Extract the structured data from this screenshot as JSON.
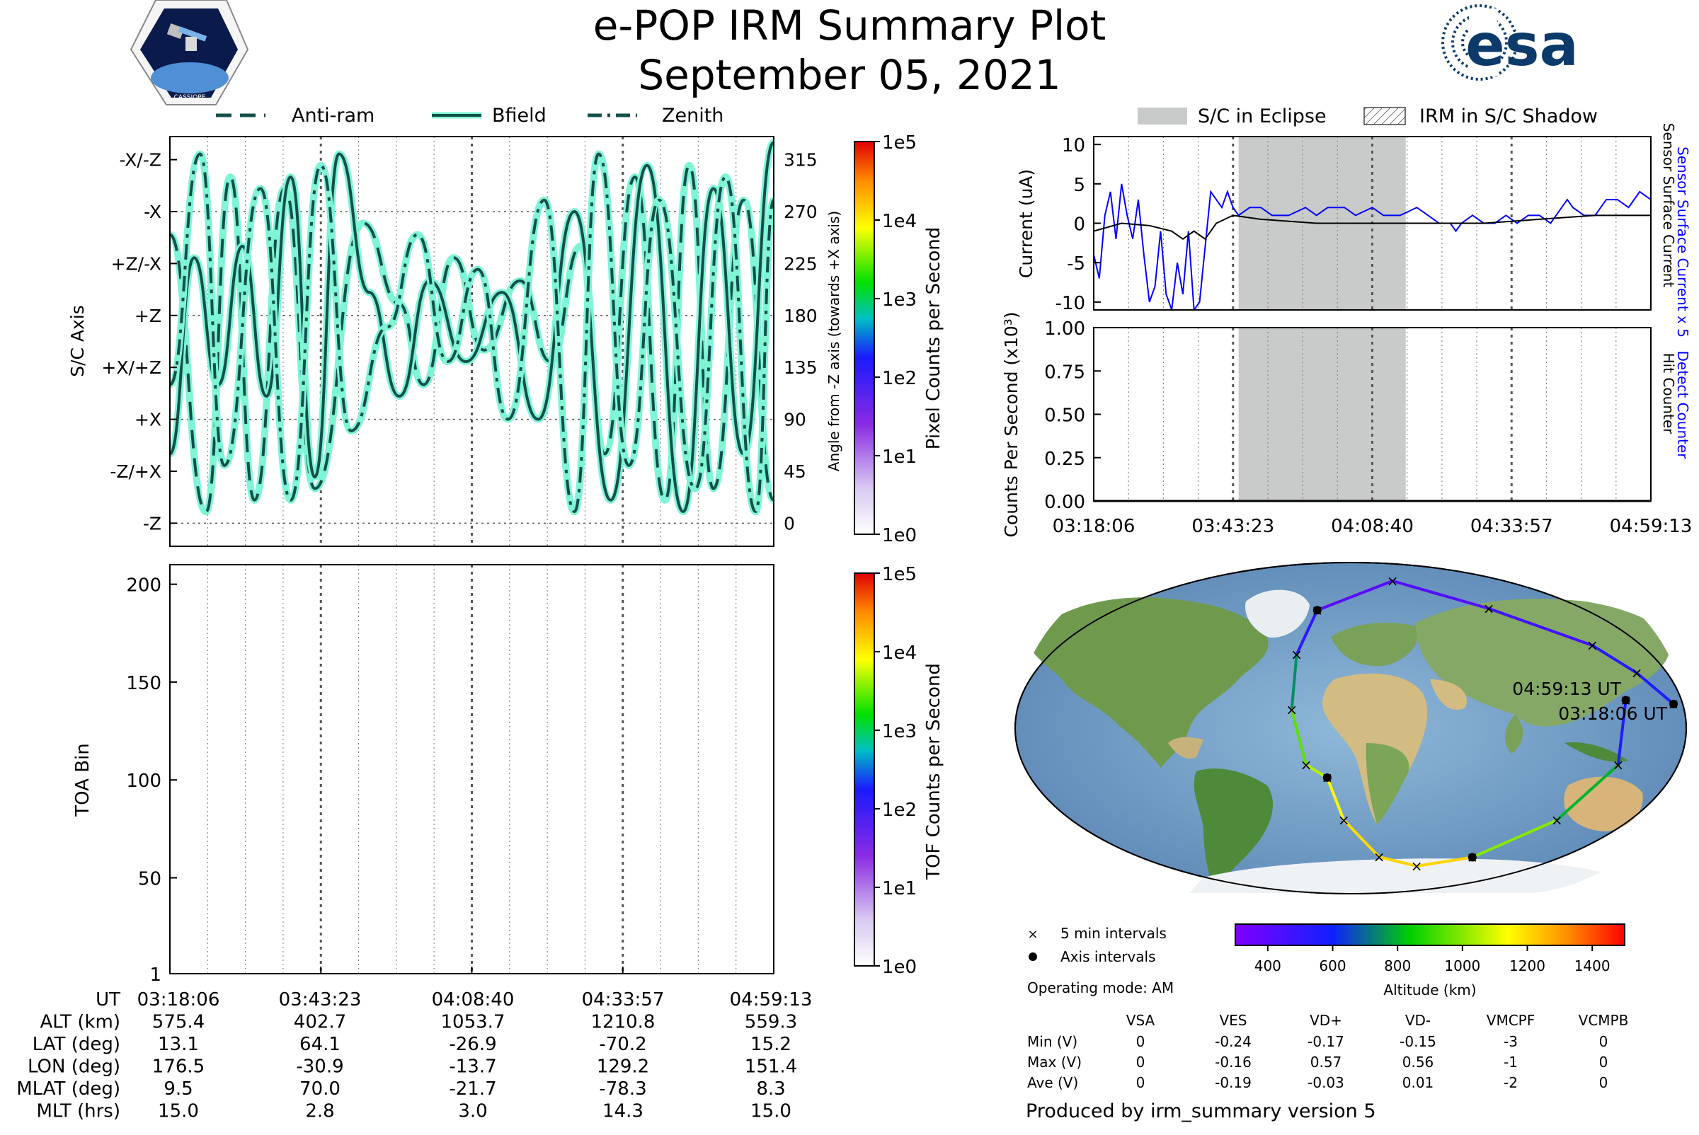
{
  "header": {
    "title": "e-POP IRM Summary Plot",
    "date": "September 05, 2021",
    "mission_logo_text": "CASSIOPE",
    "agency_logo_text": "esa"
  },
  "colors": {
    "direction_line": "#14504a",
    "direction_halo": "#7ff5d6",
    "eclipse": "#c9cbca",
    "sensor_current": "#0000ff",
    "counter_line": "#0000cc"
  },
  "time_labels": [
    "03:18:06",
    "03:43:23",
    "04:08:40",
    "04:33:57",
    "04:59:13"
  ],
  "chart_data": [
    {
      "id": "direction_panel",
      "type": "line",
      "legend": [
        "Anti-ram",
        "Bfield",
        "Zenith"
      ],
      "ylabel": "S/C Axis",
      "y2label": "Angle from -Z axis (towards +X axis)",
      "ylim": [
        -20,
        335
      ],
      "axis_ticks": [
        {
          "label": "-X/-Z",
          "value": 315
        },
        {
          "label": "-X",
          "value": 270
        },
        {
          "label": "+Z/-X",
          "value": 225
        },
        {
          "label": "+Z",
          "value": 180
        },
        {
          "label": "+X/+Z",
          "value": 135
        },
        {
          "label": "+X",
          "value": 90
        },
        {
          "label": "-Z/+X",
          "value": 45
        },
        {
          "label": "-Z",
          "value": 0
        }
      ],
      "angle_ticks": [
        "315",
        "270",
        "225",
        "180",
        "135",
        "90",
        "45",
        "0"
      ],
      "colorbar": {
        "label": "Pixel Counts per Second",
        "ticks": [
          "1e5",
          "1e4",
          "1e3",
          "1e2",
          "1e1",
          "1e0"
        ]
      },
      "series": [
        {
          "name": "Anti-ram",
          "style": "dashed",
          "x": [
            0,
            0.06,
            0.1,
            0.14,
            0.19,
            0.24,
            0.32,
            0.38,
            0.42,
            0.47,
            0.52,
            0.58,
            0.63,
            0.68,
            0.72,
            0.77,
            0.82,
            0.86,
            0.9,
            0.95,
            1.0
          ],
          "values": [
            250,
            10,
            300,
            20,
            290,
            30,
            260,
            190,
            120,
            230,
            150,
            210,
            140,
            240,
            60,
            300,
            20,
            310,
            30,
            280,
            20
          ]
        },
        {
          "name": "Bfield",
          "style": "solid",
          "x": [
            0,
            0.04,
            0.08,
            0.12,
            0.16,
            0.2,
            0.24,
            0.28,
            0.33,
            0.38,
            0.43,
            0.49,
            0.55,
            0.61,
            0.67,
            0.73,
            0.79,
            0.85,
            0.9,
            0.95,
            1.0
          ],
          "values": [
            60,
            230,
            120,
            240,
            110,
            300,
            40,
            320,
            200,
            110,
            210,
            140,
            200,
            90,
            270,
            20,
            310,
            10,
            290,
            60,
            330
          ]
        },
        {
          "name": "Zenith",
          "style": "dashdot",
          "x": [
            0,
            0.05,
            0.09,
            0.15,
            0.2,
            0.25,
            0.3,
            0.36,
            0.41,
            0.46,
            0.51,
            0.56,
            0.62,
            0.67,
            0.71,
            0.76,
            0.81,
            0.87,
            0.92,
            0.97,
            1.0
          ],
          "values": [
            120,
            320,
            50,
            290,
            20,
            310,
            80,
            170,
            250,
            140,
            220,
            90,
            280,
            10,
            320,
            50,
            280,
            30,
            300,
            10,
            280
          ]
        }
      ]
    },
    {
      "id": "tof_panel",
      "type": "heatmap",
      "ylabel": "TOA Bin",
      "yticks": [
        200,
        150,
        100,
        50,
        1
      ],
      "ylim": [
        1,
        210
      ],
      "colorbar": {
        "label": "TOF Counts per Second",
        "ticks": [
          "1e5",
          "1e4",
          "1e3",
          "1e2",
          "1e1",
          "1e0"
        ]
      },
      "values": []
    },
    {
      "id": "current_panel",
      "type": "line",
      "legend": [
        "S/C in Eclipse",
        "IRM in S/C Shadow"
      ],
      "ylabel": "Current (uA)",
      "right_labels": [
        "Sensor Surface Current x 5",
        "Sensor Surface Current"
      ],
      "yticks": [
        10,
        5,
        0,
        -5,
        -10
      ],
      "ylim": [
        -11,
        11
      ],
      "eclipse": [
        0.26,
        0.56
      ],
      "series": [
        {
          "name": "Sensor Surface Current x 5",
          "x": [
            0,
            0.01,
            0.02,
            0.03,
            0.04,
            0.05,
            0.06,
            0.07,
            0.08,
            0.09,
            0.1,
            0.11,
            0.12,
            0.13,
            0.14,
            0.15,
            0.16,
            0.17,
            0.18,
            0.19,
            0.2,
            0.21,
            0.22,
            0.23,
            0.24,
            0.25,
            0.26,
            0.28,
            0.3,
            0.32,
            0.35,
            0.38,
            0.4,
            0.42,
            0.45,
            0.47,
            0.5,
            0.52,
            0.55,
            0.58,
            0.6,
            0.62,
            0.63,
            0.64,
            0.65,
            0.66,
            0.68,
            0.7,
            0.72,
            0.74,
            0.76,
            0.78,
            0.8,
            0.82,
            0.84,
            0.85,
            0.86,
            0.88,
            0.9,
            0.92,
            0.94,
            0.96,
            0.98,
            1.0
          ],
          "values": [
            -4,
            -7,
            1,
            4,
            -2,
            5,
            1,
            -2,
            3,
            -4,
            -10,
            -8,
            -1,
            -9,
            -11,
            -5,
            -9,
            -1,
            -11,
            -10,
            -3,
            4,
            3,
            2,
            4,
            2,
            1,
            2,
            2,
            1,
            1,
            2,
            1,
            2,
            2,
            1,
            2,
            1,
            1,
            2,
            1,
            0,
            0,
            0,
            -1,
            0,
            1,
            0,
            0,
            1,
            0,
            1,
            1,
            0,
            2,
            3,
            2,
            1,
            1,
            3,
            3,
            2,
            4,
            3
          ]
        },
        {
          "name": "Sensor Surface Current",
          "x": [
            0,
            0.05,
            0.1,
            0.14,
            0.16,
            0.18,
            0.2,
            0.22,
            0.25,
            0.3,
            0.4,
            0.5,
            0.6,
            0.7,
            0.8,
            0.9,
            1.0
          ],
          "values": [
            -1,
            0,
            -0.3,
            -1,
            -2,
            -1,
            -2,
            0,
            1,
            0.5,
            0,
            0,
            0,
            0,
            0.5,
            1,
            1
          ]
        }
      ]
    },
    {
      "id": "counter_panel",
      "type": "line",
      "ylabel": "Counts Per Second (x10³)",
      "right_labels": [
        "Detect Counter",
        "Hit Counter"
      ],
      "yticks": [
        "1.00",
        "0.75",
        "0.50",
        "0.25",
        "0.00"
      ],
      "ylim": [
        0,
        1
      ],
      "eclipse": [
        0.26,
        0.56
      ],
      "series": [
        {
          "name": "Detect Counter",
          "x": [
            0,
            1
          ],
          "values": [
            0,
            0
          ]
        },
        {
          "name": "Hit Counter",
          "x": [
            0,
            1
          ],
          "values": [
            0,
            0
          ]
        }
      ]
    },
    {
      "id": "orbit_map",
      "type": "scatter",
      "colorbar": {
        "label": "Altitude (km)",
        "ticks": [
          400,
          600,
          800,
          1000,
          1200,
          1400
        ],
        "range": [
          300,
          1500
        ]
      },
      "end_label": "04:59:13 UT",
      "start_label": "03:18:06 UT",
      "legend": [
        "5 min intervals",
        "Axis intervals"
      ],
      "track": [
        {
          "lon": 176.5,
          "lat": 13.1,
          "alt": 575
        },
        {
          "lon": 170,
          "lat": 30,
          "alt": 560
        },
        {
          "lon": 165,
          "lat": 45,
          "alt": 540
        },
        {
          "lon": 130,
          "lat": 65,
          "alt": 470
        },
        {
          "lon": 60,
          "lat": 80,
          "alt": 420
        },
        {
          "lon": -30.9,
          "lat": 64.1,
          "alt": 402.7
        },
        {
          "lon": -35,
          "lat": 40,
          "alt": 520
        },
        {
          "lon": -32,
          "lat": 10,
          "alt": 750
        },
        {
          "lon": -25,
          "lat": -20,
          "alt": 950
        },
        {
          "lon": -13.7,
          "lat": -26.9,
          "alt": 1053.7
        },
        {
          "lon": -5,
          "lat": -50,
          "alt": 1150
        },
        {
          "lon": 30,
          "lat": -70,
          "alt": 1200
        },
        {
          "lon": 80,
          "lat": -75,
          "alt": 1210
        },
        {
          "lon": 129.2,
          "lat": -70.2,
          "alt": 1210.8
        },
        {
          "lon": 150,
          "lat": -50,
          "alt": 1000
        },
        {
          "lon": 150,
          "lat": -20,
          "alt": 800
        },
        {
          "lon": 151.4,
          "lat": 15.2,
          "alt": 559.3
        }
      ]
    }
  ],
  "ut_table": {
    "rows": [
      {
        "label": "UT",
        "values": [
          "03:18:06",
          "03:43:23",
          "04:08:40",
          "04:33:57",
          "04:59:13"
        ]
      },
      {
        "label": "ALT (km)",
        "values": [
          "575.4",
          "402.7",
          "1053.7",
          "1210.8",
          "559.3"
        ]
      },
      {
        "label": "LAT (deg)",
        "values": [
          "13.1",
          "64.1",
          "-26.9",
          "-70.2",
          "15.2"
        ]
      },
      {
        "label": "LON (deg)",
        "values": [
          "176.5",
          "-30.9",
          "-13.7",
          "129.2",
          "151.4"
        ]
      },
      {
        "label": "MLAT (deg)",
        "values": [
          "9.5",
          "70.0",
          "-21.7",
          "-78.3",
          "8.3"
        ]
      },
      {
        "label": "MLT (hrs)",
        "values": [
          "15.0",
          "2.8",
          "3.0",
          "14.3",
          "15.0"
        ]
      }
    ]
  },
  "info": {
    "operating_mode": "Operating mode: AM",
    "voltage_table": {
      "headers": [
        "VSA",
        "VES",
        "VD+",
        "VD-",
        "VMCPF",
        "VCMPB"
      ],
      "rows": [
        {
          "label": "Min (V)",
          "values": [
            "0",
            "-0.24",
            "-0.17",
            "-0.15",
            "-3",
            "0"
          ]
        },
        {
          "label": "Max (V)",
          "values": [
            "0",
            "-0.16",
            "0.57",
            "0.56",
            "-1",
            "0"
          ]
        },
        {
          "label": "Ave (V)",
          "values": [
            "0",
            "-0.19",
            "-0.03",
            "0.01",
            "-2",
            "0"
          ]
        }
      ]
    },
    "produced_by": "Produced by irm_summary version 5"
  }
}
